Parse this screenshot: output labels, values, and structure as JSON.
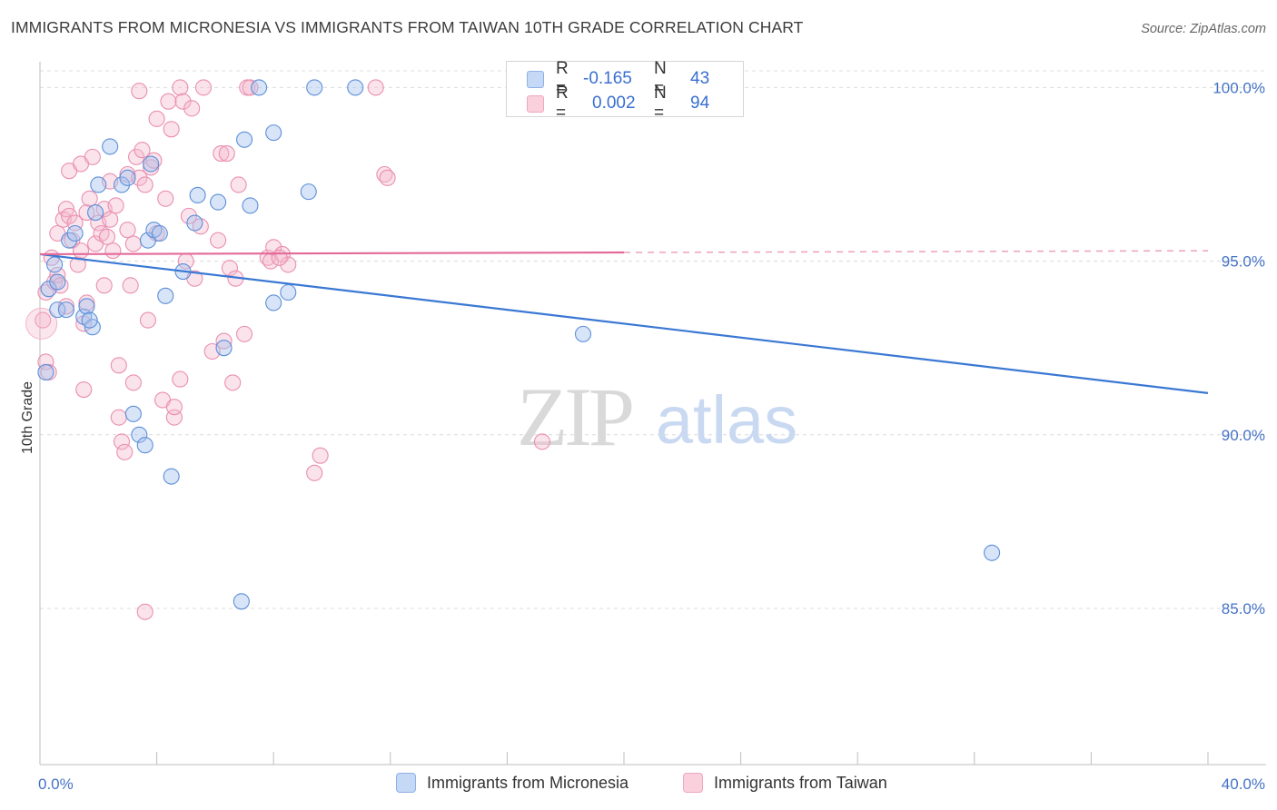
{
  "title": "IMMIGRANTS FROM MICRONESIA VS IMMIGRANTS FROM TAIWAN 10TH GRADE CORRELATION CHART",
  "source": "Source: ZipAtlas.com",
  "watermark": {
    "zip": "ZIP",
    "atlas": "atlas"
  },
  "legend": {
    "rows": [
      {
        "r_label": "R =",
        "r_value": "-0.165",
        "n_label": "N =",
        "n_value": "43",
        "color": "#a9c4ee"
      },
      {
        "r_label": "R =",
        "r_value": "0.002",
        "n_label": "N =",
        "n_value": "94",
        "color": "#f5b8cc"
      }
    ]
  },
  "bottom_legend": [
    {
      "label": "Immigrants from Micronesia",
      "fill": "#c5d8f5",
      "stroke": "#8fb0e6"
    },
    {
      "label": "Immigrants from Taiwan",
      "fill": "#fad0dd",
      "stroke": "#eea7bf"
    }
  ],
  "chart_data": {
    "type": "scatter",
    "title": "IMMIGRANTS FROM MICRONESIA VS IMMIGRANTS FROM TAIWAN 10TH GRADE CORRELATION CHART",
    "xlabel": "",
    "ylabel": "10th Grade",
    "xlim": [
      0,
      40
    ],
    "ylim": [
      80.5,
      100.9
    ],
    "x_tick_labels": [
      "0.0%",
      "40.0%"
    ],
    "y_ticks": [
      85,
      90,
      95,
      100
    ],
    "y_tick_labels": [
      "85.0%",
      "90.0%",
      "95.0%",
      "100.0%"
    ],
    "grid": true,
    "colors": {
      "micronesia": "#3a78d4",
      "taiwan": "#e36a98"
    },
    "series": [
      {
        "name": "Immigrants from Micronesia",
        "color": "#a9c4ee",
        "trend": {
          "x": [
            0,
            40
          ],
          "y": [
            95.2,
            91.2
          ],
          "dashed_after": null
        },
        "points": [
          [
            0.2,
            91.8
          ],
          [
            0.3,
            94.2
          ],
          [
            0.5,
            94.9
          ],
          [
            0.6,
            94.4
          ],
          [
            0.6,
            93.6
          ],
          [
            0.9,
            93.6
          ],
          [
            1.0,
            95.6
          ],
          [
            1.2,
            95.8
          ],
          [
            1.5,
            93.4
          ],
          [
            1.6,
            93.7
          ],
          [
            1.8,
            93.1
          ],
          [
            1.9,
            96.4
          ],
          [
            2.0,
            97.2
          ],
          [
            2.4,
            98.3
          ],
          [
            2.8,
            97.2
          ],
          [
            3.0,
            97.4
          ],
          [
            3.2,
            90.6
          ],
          [
            3.4,
            90.0
          ],
          [
            3.6,
            89.7
          ],
          [
            3.7,
            95.6
          ],
          [
            3.8,
            97.8
          ],
          [
            3.9,
            95.9
          ],
          [
            4.1,
            95.8
          ],
          [
            4.3,
            94.0
          ],
          [
            4.5,
            88.8
          ],
          [
            4.9,
            94.7
          ],
          [
            5.3,
            96.1
          ],
          [
            5.4,
            96.9
          ],
          [
            6.1,
            96.7
          ],
          [
            6.3,
            92.5
          ],
          [
            6.9,
            85.2
          ],
          [
            7.0,
            98.5
          ],
          [
            7.2,
            96.6
          ],
          [
            7.5,
            100.0
          ],
          [
            8.0,
            93.8
          ],
          [
            8.0,
            98.7
          ],
          [
            8.5,
            94.1
          ],
          [
            9.2,
            97.0
          ],
          [
            9.4,
            100.0
          ],
          [
            10.8,
            100.0
          ],
          [
            18.6,
            92.9
          ],
          [
            32.6,
            86.6
          ],
          [
            1.7,
            93.3
          ]
        ]
      },
      {
        "name": "Immigrants from Taiwan",
        "color": "#f5b8cc",
        "trend": {
          "x": [
            0,
            40
          ],
          "y": [
            95.2,
            95.3
          ],
          "dashed_after": 20
        },
        "points": [
          [
            0.1,
            93.3
          ],
          [
            0.2,
            94.1
          ],
          [
            0.2,
            92.1
          ],
          [
            0.3,
            91.8
          ],
          [
            0.4,
            95.1
          ],
          [
            0.5,
            94.4
          ],
          [
            0.6,
            94.6
          ],
          [
            0.6,
            95.8
          ],
          [
            0.7,
            94.3
          ],
          [
            0.8,
            96.2
          ],
          [
            0.9,
            96.5
          ],
          [
            0.9,
            93.7
          ],
          [
            1.0,
            96.3
          ],
          [
            1.0,
            97.6
          ],
          [
            1.1,
            95.6
          ],
          [
            1.2,
            96.1
          ],
          [
            1.3,
            94.9
          ],
          [
            1.4,
            95.3
          ],
          [
            1.4,
            97.8
          ],
          [
            1.5,
            93.2
          ],
          [
            1.5,
            91.3
          ],
          [
            1.6,
            96.4
          ],
          [
            1.6,
            93.8
          ],
          [
            1.7,
            96.8
          ],
          [
            1.8,
            98.0
          ],
          [
            1.9,
            95.5
          ],
          [
            2.0,
            96.1
          ],
          [
            2.1,
            95.8
          ],
          [
            2.2,
            96.5
          ],
          [
            2.2,
            94.3
          ],
          [
            2.3,
            95.7
          ],
          [
            2.4,
            96.2
          ],
          [
            2.4,
            97.3
          ],
          [
            2.5,
            95.3
          ],
          [
            2.6,
            96.6
          ],
          [
            2.7,
            90.5
          ],
          [
            2.7,
            92.0
          ],
          [
            2.8,
            89.8
          ],
          [
            2.9,
            89.5
          ],
          [
            3.0,
            95.9
          ],
          [
            3.0,
            97.5
          ],
          [
            3.1,
            94.3
          ],
          [
            3.2,
            91.5
          ],
          [
            3.2,
            95.5
          ],
          [
            3.3,
            98.0
          ],
          [
            3.4,
            99.9
          ],
          [
            3.4,
            97.4
          ],
          [
            3.5,
            98.2
          ],
          [
            3.6,
            97.2
          ],
          [
            3.6,
            84.9
          ],
          [
            3.7,
            93.3
          ],
          [
            3.8,
            97.7
          ],
          [
            3.9,
            97.9
          ],
          [
            4.0,
            95.8
          ],
          [
            4.0,
            99.1
          ],
          [
            4.2,
            91.0
          ],
          [
            4.3,
            96.8
          ],
          [
            4.4,
            99.6
          ],
          [
            4.5,
            98.8
          ],
          [
            4.6,
            90.5
          ],
          [
            4.6,
            90.8
          ],
          [
            4.8,
            100.0
          ],
          [
            4.8,
            91.6
          ],
          [
            4.9,
            99.6
          ],
          [
            5.0,
            95.0
          ],
          [
            5.1,
            96.3
          ],
          [
            5.2,
            99.4
          ],
          [
            5.3,
            94.5
          ],
          [
            5.5,
            96.0
          ],
          [
            5.6,
            100.0
          ],
          [
            5.9,
            92.4
          ],
          [
            6.1,
            95.6
          ],
          [
            6.2,
            98.1
          ],
          [
            6.3,
            92.7
          ],
          [
            6.4,
            98.1
          ],
          [
            6.5,
            94.8
          ],
          [
            6.6,
            91.5
          ],
          [
            6.7,
            94.5
          ],
          [
            6.8,
            97.2
          ],
          [
            7.0,
            92.9
          ],
          [
            7.1,
            100.0
          ],
          [
            7.2,
            100.0
          ],
          [
            7.8,
            95.1
          ],
          [
            7.9,
            95.0
          ],
          [
            8.0,
            95.4
          ],
          [
            8.3,
            95.2
          ],
          [
            8.5,
            94.9
          ],
          [
            9.4,
            88.9
          ],
          [
            9.6,
            89.4
          ],
          [
            11.8,
            97.5
          ],
          [
            11.9,
            97.4
          ],
          [
            11.5,
            100.0
          ],
          [
            17.2,
            89.8
          ],
          [
            8.2,
            95.1
          ]
        ]
      }
    ]
  }
}
